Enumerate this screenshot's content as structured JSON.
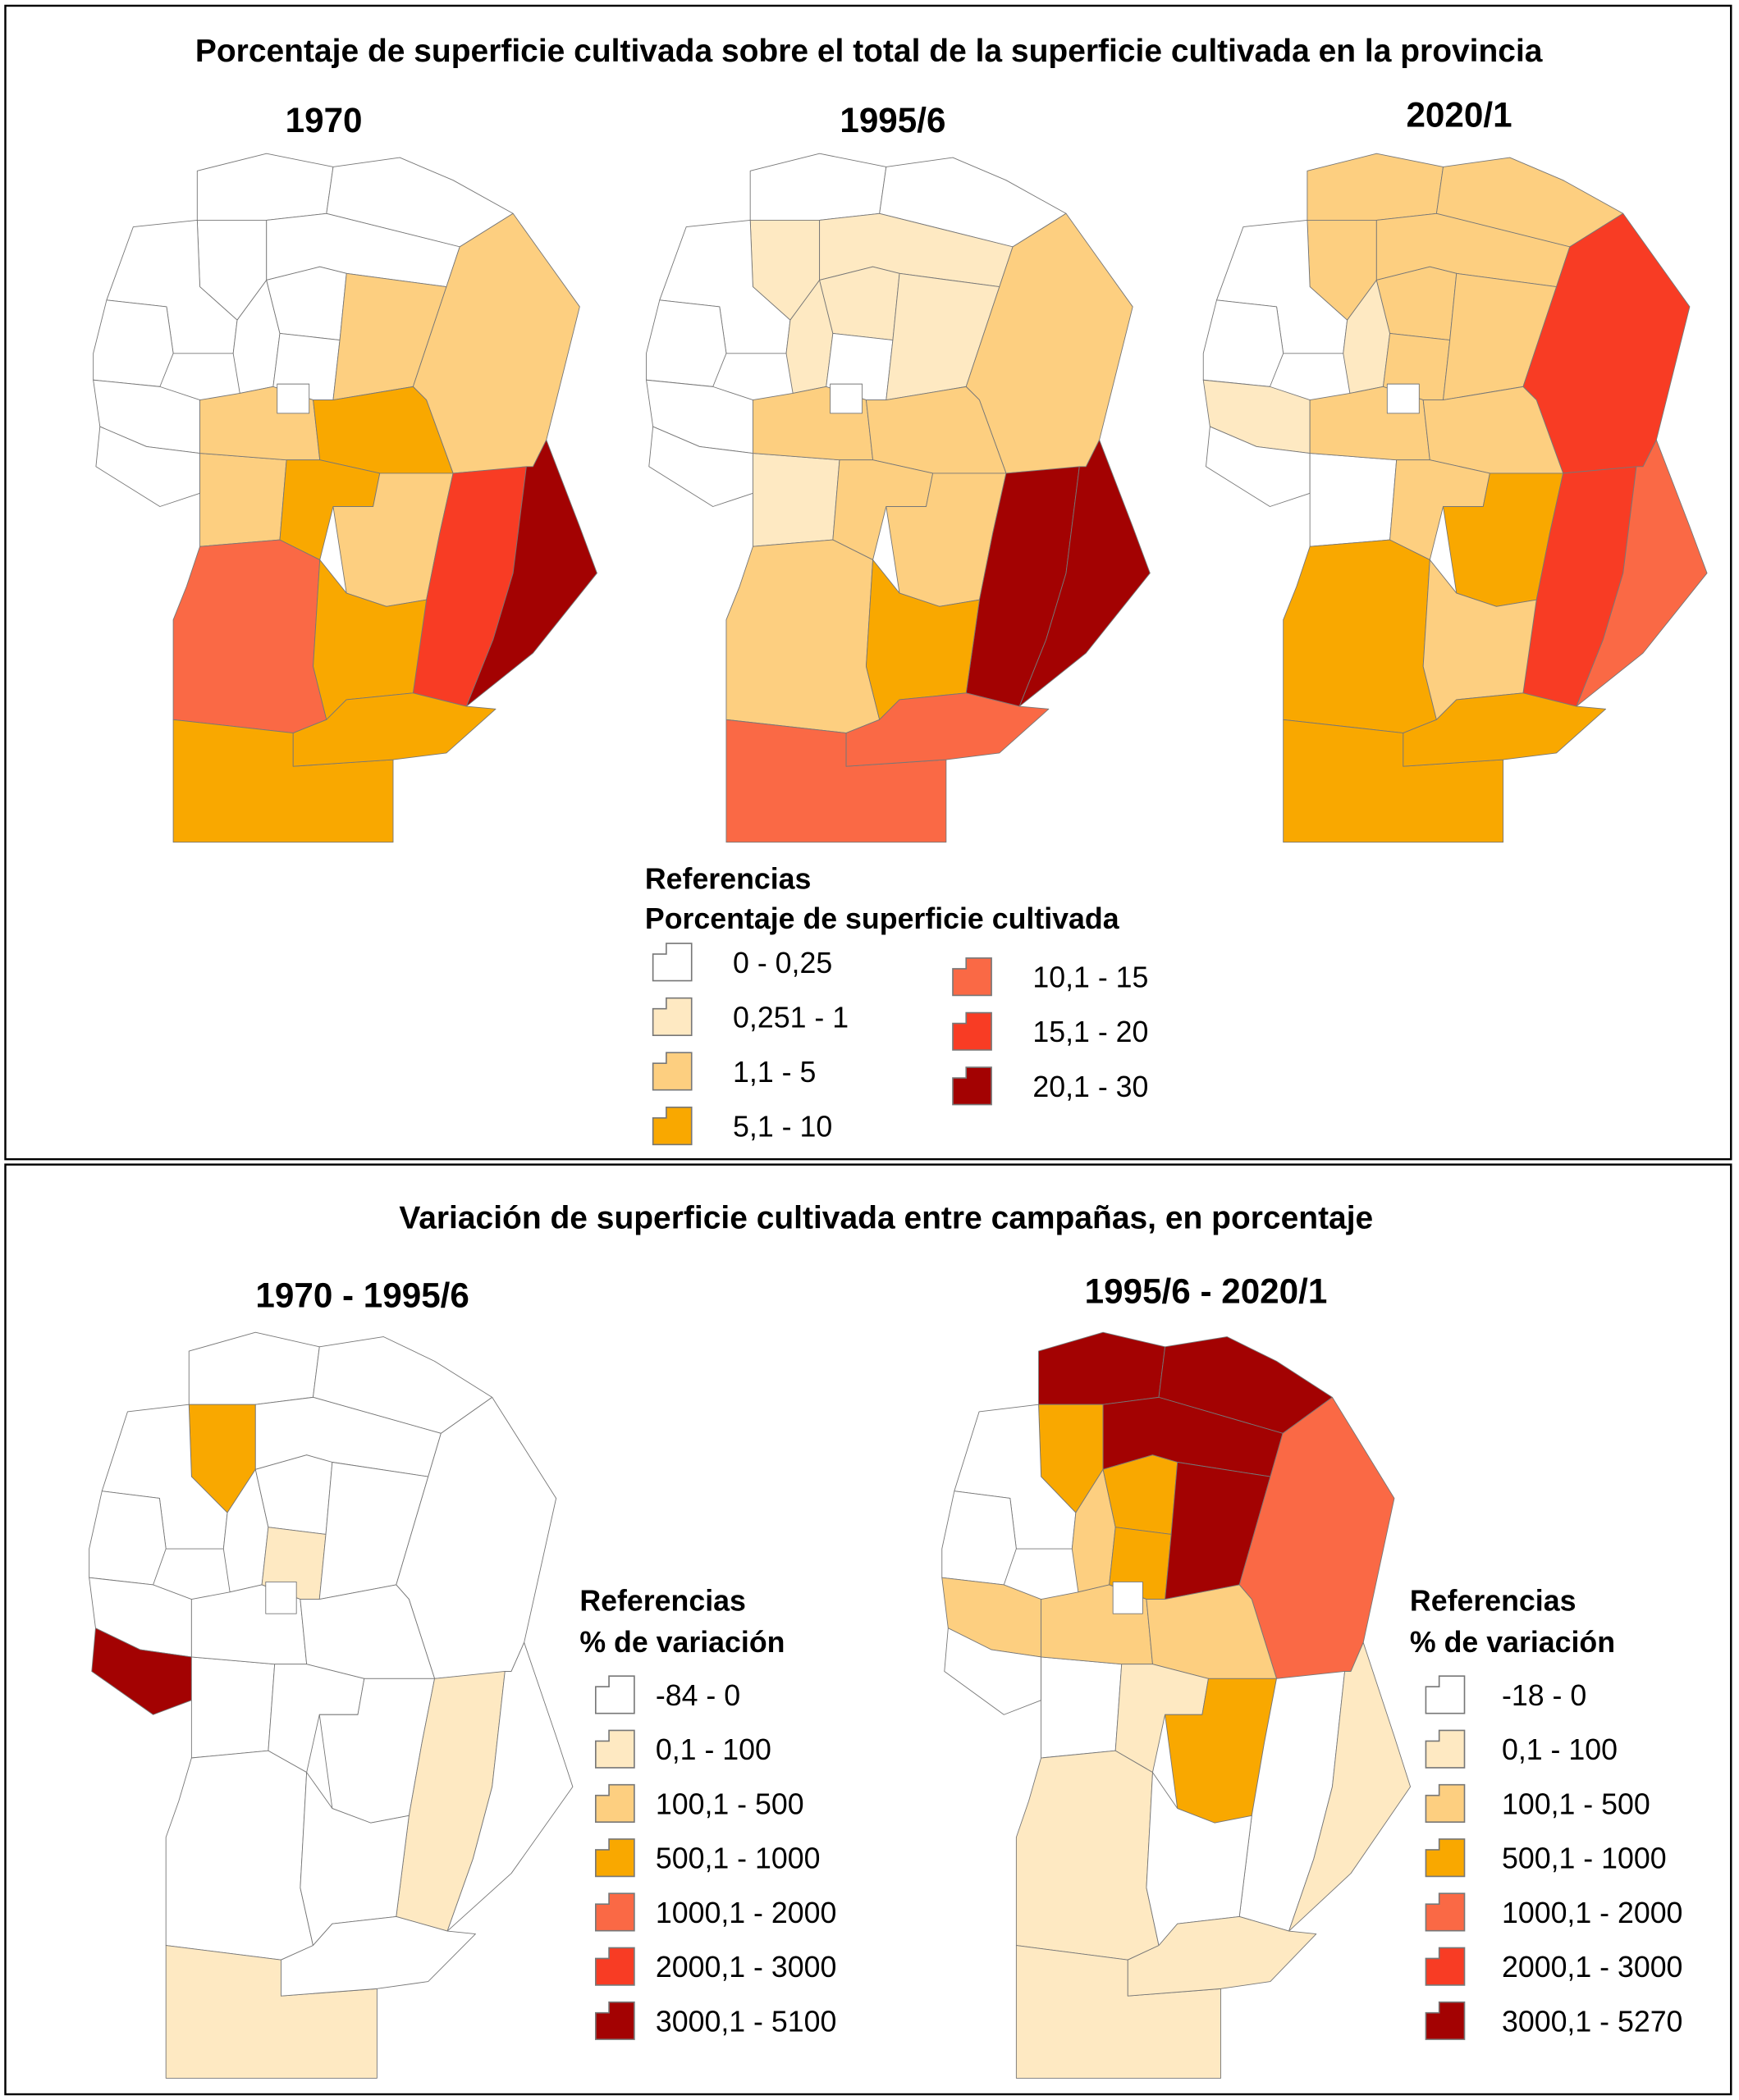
{
  "palette": {
    "class0": "#ffffff",
    "class1": "#fee9c2",
    "class2": "#fdcf80",
    "class3": "#f9a800",
    "class4": "#fa6945",
    "class5": "#f83c24",
    "class6": "#a30202"
  },
  "top_panel": {
    "title": "Porcentaje de superficie cultivada sobre el total de la superficie cultivada en la provincia",
    "maps": [
      {
        "label": "1970"
      },
      {
        "label": "1995/6"
      },
      {
        "label": "2020/1"
      }
    ],
    "legend": {
      "heading": "Referencias",
      "subheading": "Porcentaje de superficie cultivada",
      "items": [
        "0 - 0,25",
        "0,251 - 1",
        "1,1 - 5",
        "5,1 - 10",
        "10,1 - 15",
        "15,1 - 20",
        "20,1 - 30"
      ]
    }
  },
  "bottom_panel": {
    "title": "Variación de superficie cultivada entre campañas, en porcentaje",
    "maps": [
      {
        "label": "1970 - 1995/6",
        "legend": {
          "heading": "Referencias",
          "subheading": "% de variación",
          "items": [
            "-84 - 0",
            "0,1 - 100",
            "100,1 - 500",
            "500,1 - 1000",
            "1000,1 - 2000",
            "2000,1 - 3000",
            "3000,1 - 5100"
          ]
        }
      },
      {
        "label": "1995/6 - 2020/1",
        "legend": {
          "heading": "Referencias",
          "subheading": "% de variación",
          "items": [
            "-18 - 0",
            "0,1 - 100",
            "100,1 - 500",
            "500,1 - 1000",
            "1000,1 - 2000",
            "2000,1 - 3000",
            "3000,1 - 5270"
          ]
        }
      }
    ]
  },
  "map_classes": {
    "1970": {
      "sobremonte": 0,
      "rio_seco": 0,
      "ischilin": 0,
      "tulumba": 0,
      "cruz_del_eje": 0,
      "minas": 0,
      "punilla": 0,
      "totoral": 0,
      "colon": 0,
      "capital": 0,
      "rio_primero": 2,
      "san_justo": 2,
      "pocho": 0,
      "san_alberto": 0,
      "san_javier": 2,
      "santa_maria": 2,
      "rio_segundo": 3,
      "calamuchita": 3,
      "tercero_arriba": 2,
      "san_martin": 5,
      "union": 6,
      "rio_cuarto": 4,
      "juarez_celman": 3,
      "roca": 3,
      "saenz_pena": 3
    },
    "1995/6": {
      "sobremonte": 0,
      "rio_seco": 0,
      "ischilin": 1,
      "tulumba": 1,
      "cruz_del_eje": 0,
      "minas": 0,
      "punilla": 1,
      "totoral": 1,
      "colon": 0,
      "capital": 0,
      "rio_primero": 1,
      "san_justo": 2,
      "pocho": 0,
      "san_alberto": 0,
      "san_javier": 1,
      "santa_maria": 2,
      "rio_segundo": 2,
      "calamuchita": 2,
      "tercero_arriba": 2,
      "san_martin": 6,
      "union": 6,
      "rio_cuarto": 2,
      "juarez_celman": 3,
      "roca": 4,
      "saenz_pena": 4
    },
    "2020/1": {
      "sobremonte": 2,
      "rio_seco": 2,
      "ischilin": 2,
      "tulumba": 2,
      "cruz_del_eje": 0,
      "minas": 0,
      "punilla": 1,
      "totoral": 2,
      "colon": 2,
      "capital": 0,
      "rio_primero": 2,
      "san_justo": 5,
      "pocho": 1,
      "san_alberto": 0,
      "san_javier": 0,
      "santa_maria": 2,
      "rio_segundo": 2,
      "calamuchita": 2,
      "tercero_arriba": 3,
      "san_martin": 5,
      "union": 4,
      "rio_cuarto": 3,
      "juarez_celman": 2,
      "roca": 3,
      "saenz_pena": 3
    },
    "1970 - 1995/6": {
      "sobremonte": 0,
      "rio_seco": 0,
      "ischilin": 3,
      "tulumba": 0,
      "cruz_del_eje": 0,
      "minas": 0,
      "punilla": 0,
      "totoral": 0,
      "colon": 1,
      "capital": 0,
      "rio_primero": 0,
      "san_justo": 0,
      "pocho": 0,
      "san_alberto": 6,
      "san_javier": 0,
      "santa_maria": 0,
      "rio_segundo": 0,
      "calamuchita": 0,
      "tercero_arriba": 0,
      "san_martin": 1,
      "union": 0,
      "rio_cuarto": 0,
      "juarez_celman": 0,
      "roca": 1,
      "saenz_pena": 0
    },
    "1995/6 - 2020/1": {
      "sobremonte": 6,
      "rio_seco": 6,
      "ischilin": 3,
      "tulumba": 6,
      "cruz_del_eje": 0,
      "minas": 0,
      "punilla": 2,
      "totoral": 3,
      "colon": 3,
      "capital": 0,
      "rio_primero": 6,
      "san_justo": 4,
      "pocho": 2,
      "san_alberto": 0,
      "san_javier": 0,
      "santa_maria": 2,
      "rio_segundo": 2,
      "calamuchita": 1,
      "tercero_arriba": 3,
      "san_martin": 0,
      "union": 1,
      "rio_cuarto": 1,
      "juarez_celman": 0,
      "roca": 1,
      "saenz_pena": 1
    }
  }
}
